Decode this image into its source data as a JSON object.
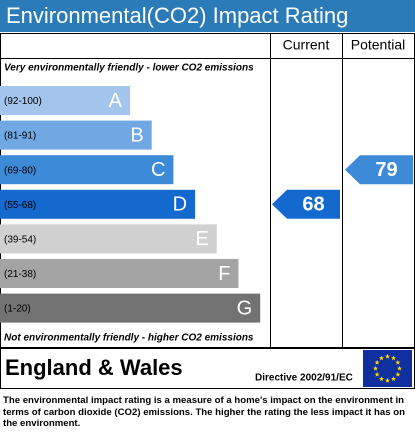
{
  "title": "Environmental(CO2) Impact Rating",
  "columns": [
    "Current",
    "Potential"
  ],
  "top_note": "Very environmentally friendly - lower CO2 emissions",
  "bands": [
    {
      "range": "(92-100)",
      "letter": "A",
      "color": "#a3c4ec"
    },
    {
      "range": "(81-91)",
      "letter": "B",
      "color": "#6fa8e2"
    },
    {
      "range": "(69-80)",
      "letter": "C",
      "color": "#3d8ad8"
    },
    {
      "range": "(55-68)",
      "letter": "D",
      "color": "#1469cf"
    },
    {
      "range": "(39-54)",
      "letter": "E",
      "color": "#d0d0d0"
    },
    {
      "range": "(21-38)",
      "letter": "F",
      "color": "#a4a4a4"
    },
    {
      "range": "(1-20)",
      "letter": "G",
      "color": "#727272"
    }
  ],
  "bottom_note": "Not environmentally friendly - higher CO2 emissions",
  "current": 68,
  "potential": 79,
  "region": "England & Wales",
  "directive": "Directive 2002/91/EC",
  "description": "The environmental impact rating is a measure of a home's impact on the environment in terms of carbon dioxide (CO2) emissions. The higher the rating the less impact it has on the environment."
}
